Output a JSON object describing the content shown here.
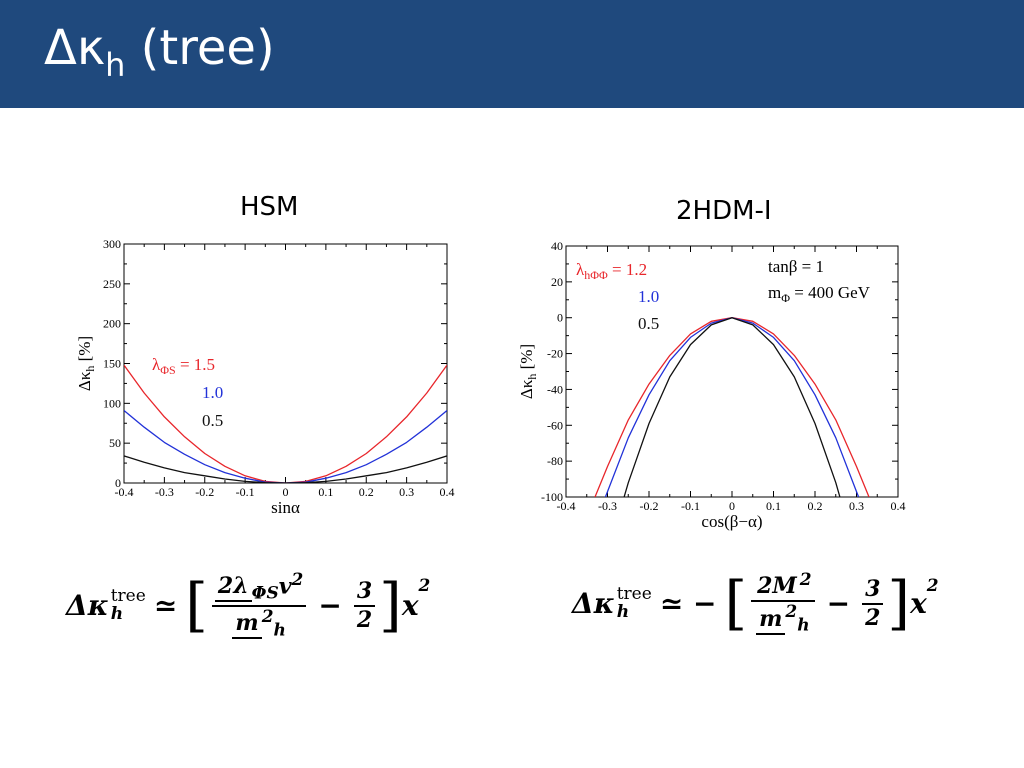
{
  "slide": {
    "title_main": "Δκ",
    "title_sub": "h",
    "title_rest": " (tree)",
    "header_color": "#1f497d"
  },
  "panels": {
    "left_label": "HSM",
    "right_label": "2HDM-I"
  },
  "chart_data": [
    {
      "type": "line",
      "panel": "HSM",
      "xlabel": "sinα",
      "ylabel": "Δκ_h [%]",
      "ylabel_parts": {
        "pre": "Δκ",
        "sub": "h",
        "post": " [%]"
      },
      "xlim": [
        -0.4,
        0.4
      ],
      "ylim": [
        0,
        300
      ],
      "xticks": [
        -0.4,
        -0.3,
        -0.2,
        -0.1,
        0,
        0.1,
        0.2,
        0.3,
        0.4
      ],
      "xtick_labels": [
        "-0.4",
        "-0.3",
        "-0.2",
        "-0.1",
        "0",
        "0.1",
        "0.2",
        "0.3",
        "0.4"
      ],
      "yticks": [
        0,
        50,
        100,
        150,
        200,
        250,
        300
      ],
      "ytick_labels": [
        "0",
        "50",
        "100",
        "150",
        "200",
        "250",
        "300"
      ],
      "legend_prefix": {
        "sym": "λ",
        "sub": "ΦS",
        "eq": " = "
      },
      "series": [
        {
          "name": "1.5",
          "color": "#e8262b",
          "x": [
            -0.4,
            -0.35,
            -0.3,
            -0.25,
            -0.2,
            -0.15,
            -0.1,
            -0.05,
            0,
            0.05,
            0.1,
            0.15,
            0.2,
            0.25,
            0.3,
            0.35,
            0.4
          ],
          "values": [
            148,
            113,
            83,
            58,
            37,
            21,
            9,
            2,
            0,
            2,
            9,
            21,
            37,
            58,
            83,
            113,
            148
          ]
        },
        {
          "name": "1.0",
          "color": "#2232d8",
          "x": [
            -0.4,
            -0.35,
            -0.3,
            -0.25,
            -0.2,
            -0.15,
            -0.1,
            -0.05,
            0,
            0.05,
            0.1,
            0.15,
            0.2,
            0.25,
            0.3,
            0.35,
            0.4
          ],
          "values": [
            91,
            70,
            51,
            36,
            23,
            13,
            6,
            1,
            0,
            1,
            6,
            13,
            23,
            36,
            51,
            70,
            91
          ]
        },
        {
          "name": "0.5",
          "color": "#111111",
          "x": [
            -0.4,
            -0.35,
            -0.3,
            -0.25,
            -0.2,
            -0.15,
            -0.1,
            -0.05,
            0,
            0.05,
            0.1,
            0.15,
            0.2,
            0.25,
            0.3,
            0.35,
            0.4
          ],
          "values": [
            34,
            26,
            19,
            13,
            9,
            5,
            2,
            0.5,
            0,
            0.5,
            2,
            5,
            9,
            13,
            19,
            26,
            34
          ]
        }
      ]
    },
    {
      "type": "line",
      "panel": "2HDM-I",
      "xlabel": "cos(β−α)",
      "ylabel": "Δκ_h [%]",
      "ylabel_parts": {
        "pre": "Δκ",
        "sub": "h",
        "post": " [%]"
      },
      "xlim": [
        -0.4,
        0.4
      ],
      "ylim": [
        -100,
        40
      ],
      "xticks": [
        -0.4,
        -0.3,
        -0.2,
        -0.1,
        0,
        0.1,
        0.2,
        0.3,
        0.4
      ],
      "xtick_labels": [
        "-0.4",
        "-0.3",
        "-0.2",
        "-0.1",
        "0",
        "0.1",
        "0.2",
        "0.3",
        "0.4"
      ],
      "yticks": [
        -100,
        -80,
        -60,
        -40,
        -20,
        0,
        20,
        40
      ],
      "ytick_labels": [
        "-100",
        "-80",
        "-60",
        "-40",
        "-20",
        "0",
        "20",
        "40"
      ],
      "legend_prefix": {
        "sym": "λ",
        "sub": "hΦΦ",
        "eq": " = "
      },
      "annotations": [
        {
          "text": "tanβ = 1"
        },
        {
          "pre": "m",
          "sub": "Φ",
          "post": " = 400 GeV"
        }
      ],
      "series": [
        {
          "name": "1.2",
          "color": "#e8262b",
          "x": [
            -0.33,
            -0.3,
            -0.25,
            -0.2,
            -0.15,
            -0.1,
            -0.05,
            0,
            0.05,
            0.1,
            0.15,
            0.2,
            0.25,
            0.3,
            0.33
          ],
          "values": [
            -100,
            -83,
            -57,
            -37,
            -21,
            -9,
            -2,
            0,
            -2,
            -9,
            -21,
            -37,
            -57,
            -83,
            -100
          ]
        },
        {
          "name": "1.0",
          "color": "#2232d8",
          "x": [
            -0.305,
            -0.3,
            -0.25,
            -0.2,
            -0.15,
            -0.1,
            -0.05,
            0,
            0.05,
            0.1,
            0.15,
            0.2,
            0.25,
            0.3,
            0.305
          ],
          "values": [
            -100,
            -97,
            -67,
            -43,
            -24,
            -11,
            -3,
            0,
            -3,
            -11,
            -24,
            -43,
            -67,
            -97,
            -100
          ]
        },
        {
          "name": "0.5",
          "color": "#111111",
          "x": [
            -0.26,
            -0.25,
            -0.2,
            -0.15,
            -0.1,
            -0.05,
            0,
            0.05,
            0.1,
            0.15,
            0.2,
            0.25,
            0.26
          ],
          "values": [
            -100,
            -92,
            -59,
            -33,
            -15,
            -4,
            0,
            -4,
            -15,
            -33,
            -59,
            -92,
            -100
          ]
        }
      ]
    }
  ],
  "formulas": {
    "left": {
      "lhs": "Δκ",
      "lhs_sub": "h",
      "lhs_sup": "tree",
      "approx": "≃",
      "num": "2λ",
      "num_sub": "ΦS",
      "num_tail": "v",
      "num_sup": "2",
      "den": "m",
      "den_sub": "h",
      "den_sup": "2",
      "minus": "−",
      "half_num": "3",
      "half_den": "2",
      "x": "x",
      "x_sup": "2",
      "lb": "[",
      "rb": "]"
    },
    "right": {
      "lhs": "Δκ",
      "lhs_sub": "h",
      "lhs_sup": "tree",
      "approx": "≃ −",
      "num": "2M",
      "num_sup": "2",
      "den": "m",
      "den_sub": "h",
      "den_sup": "2",
      "minus": "−",
      "half_num": "3",
      "half_den": "2",
      "x": "x",
      "x_sup": "2",
      "lb": "[",
      "rb": "]"
    }
  }
}
